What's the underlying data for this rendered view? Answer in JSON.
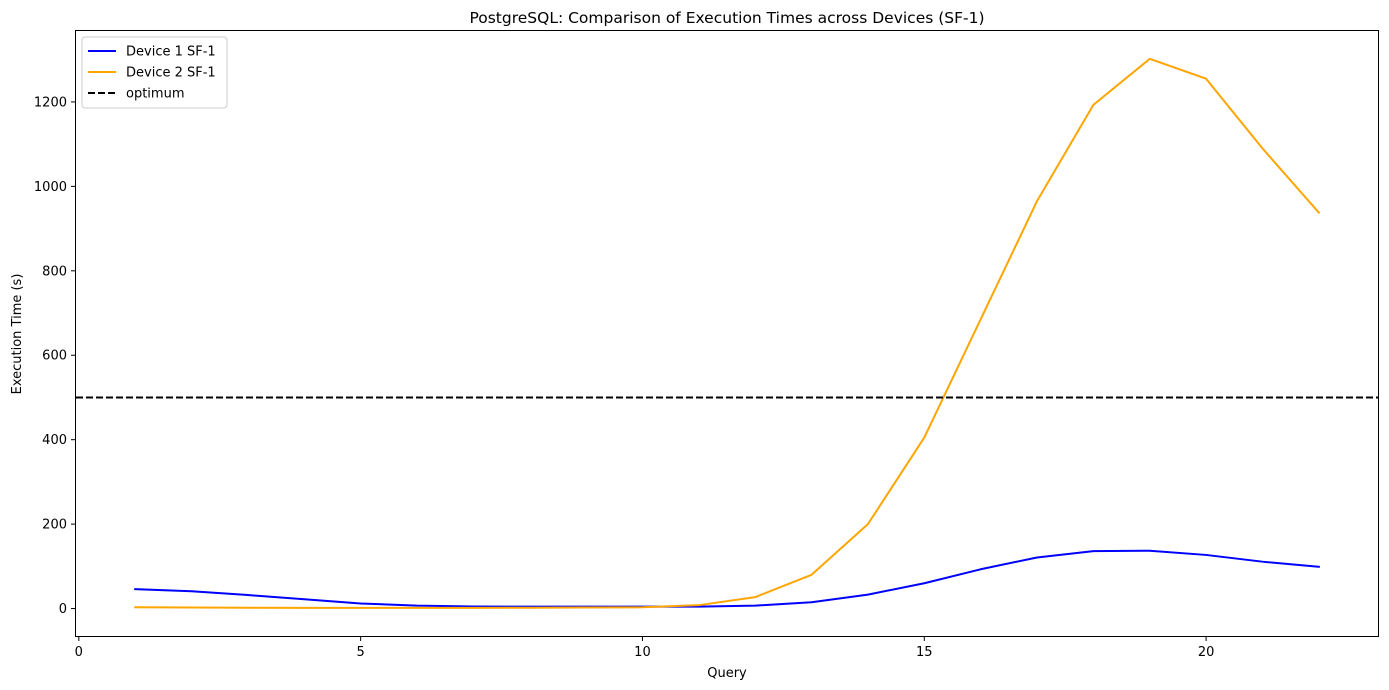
{
  "chart_data": {
    "type": "line",
    "title": "PostgreSQL: Comparison of Execution Times across Devices (SF-1)",
    "xlabel": "Query",
    "ylabel": "Execution Time (s)",
    "xlim": [
      -0.05,
      23.05
    ],
    "ylim": [
      -65,
      1368
    ],
    "xticks": [
      0,
      5,
      10,
      15,
      20
    ],
    "yticks": [
      0,
      200,
      400,
      600,
      800,
      1000,
      1200
    ],
    "grid": false,
    "legend_position": "top-left",
    "series": [
      {
        "name": "Device 1 SF-1",
        "color": "#0000ff",
        "style": "solid",
        "x": [
          1,
          2,
          3,
          4,
          5,
          6,
          7,
          8,
          9,
          10,
          11,
          12,
          13,
          14,
          15,
          16,
          17,
          18,
          19,
          20,
          21,
          22
        ],
        "values": [
          46,
          41,
          32,
          22,
          12,
          7,
          5,
          4.5,
          4.5,
          4.5,
          4.5,
          7,
          15,
          33,
          60,
          93,
          121,
          136,
          137,
          127,
          111,
          99
        ]
      },
      {
        "name": "Device 2 SF-1",
        "color": "#ffa500",
        "style": "solid",
        "x": [
          1,
          2,
          3,
          4,
          5,
          6,
          7,
          8,
          9,
          10,
          11,
          12,
          13,
          14,
          15,
          16,
          17,
          18,
          19,
          20,
          21,
          22
        ],
        "values": [
          3,
          2.5,
          2,
          1.5,
          1.5,
          1.5,
          1.5,
          2,
          2.5,
          3,
          8,
          27,
          80,
          200,
          405,
          685,
          965,
          1193,
          1302,
          1255,
          1090,
          938
        ]
      }
    ],
    "reference_lines": [
      {
        "name": "optimum",
        "value": 500,
        "orientation": "horizontal",
        "color": "#000000",
        "style": "dashed"
      }
    ]
  }
}
